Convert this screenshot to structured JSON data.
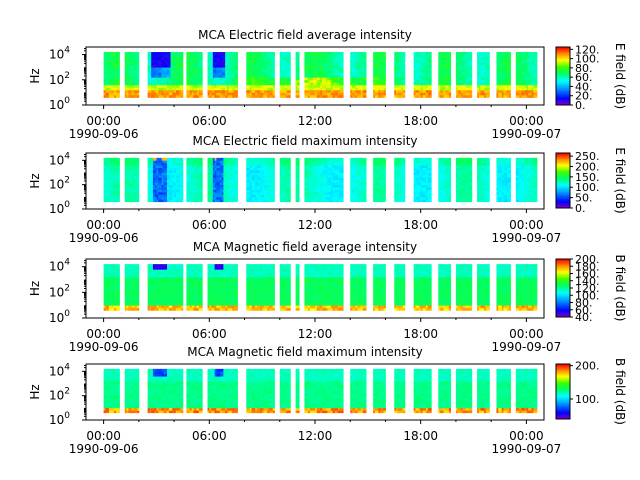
{
  "chart_data": [
    {
      "type": "heatmap",
      "title": "MCA  Electric field average intensity",
      "ylabel": "Hz",
      "colorbar_label": "E field (dB)",
      "colorbar_ticks": [
        "0.",
        "20.",
        "40.",
        "60.",
        "80.",
        "100.",
        "120."
      ],
      "colorbar_range": [
        0,
        125
      ],
      "yticks": [
        {
          "base": "10",
          "exp": "0"
        },
        {
          "base": "10",
          "exp": "2"
        },
        {
          "base": "10",
          "exp": "4"
        }
      ],
      "ylim_log10": [
        0,
        4.6
      ],
      "xticks": [
        {
          "time": "00:00",
          "date": "1990-09-06"
        },
        {
          "time": "06:00",
          "date": ""
        },
        {
          "time": "12:00",
          "date": ""
        },
        {
          "time": "18:00",
          "date": ""
        },
        {
          "time": "00:00",
          "date": "1990-09-07"
        }
      ],
      "xlim_hours": [
        -1,
        25
      ],
      "profile": "e_avg"
    },
    {
      "type": "heatmap",
      "title": "MCA  Electric field maximum intensity",
      "ylabel": "Hz",
      "colorbar_label": "E field (dB)",
      "colorbar_ticks": [
        "0.",
        "50.",
        "100.",
        "150.",
        "200.",
        "250."
      ],
      "colorbar_range": [
        0,
        265
      ],
      "yticks": [
        {
          "base": "10",
          "exp": "0"
        },
        {
          "base": "10",
          "exp": "2"
        },
        {
          "base": "10",
          "exp": "4"
        }
      ],
      "ylim_log10": [
        0,
        4.6
      ],
      "xticks": [
        {
          "time": "00:00",
          "date": "1990-09-06"
        },
        {
          "time": "06:00",
          "date": ""
        },
        {
          "time": "12:00",
          "date": ""
        },
        {
          "time": "18:00",
          "date": ""
        },
        {
          "time": "00:00",
          "date": "1990-09-07"
        }
      ],
      "xlim_hours": [
        -1,
        25
      ],
      "profile": "e_max"
    },
    {
      "type": "heatmap",
      "title": "MCA  Magnetic field average intensity",
      "ylabel": "Hz",
      "colorbar_label": "B field (dB)",
      "colorbar_ticks": [
        "40.",
        "60.",
        "80.",
        "100.",
        "120.",
        "140.",
        "160.",
        "180.",
        "200."
      ],
      "colorbar_range": [
        40,
        200
      ],
      "yticks": [
        {
          "base": "10",
          "exp": "0"
        },
        {
          "base": "10",
          "exp": "2"
        },
        {
          "base": "10",
          "exp": "4"
        }
      ],
      "ylim_log10": [
        0,
        4.6
      ],
      "xticks": [
        {
          "time": "00:00",
          "date": "1990-09-06"
        },
        {
          "time": "06:00",
          "date": ""
        },
        {
          "time": "12:00",
          "date": ""
        },
        {
          "time": "18:00",
          "date": ""
        },
        {
          "time": "00:00",
          "date": "1990-09-07"
        }
      ],
      "xlim_hours": [
        -1,
        25
      ],
      "profile": "b_avg"
    },
    {
      "type": "heatmap",
      "title": "MCA  Magnetic field maximum intensity",
      "ylabel": "Hz",
      "colorbar_label": "B field (dB)",
      "colorbar_ticks": [
        "100.",
        "200."
      ],
      "colorbar_range": [
        40,
        205
      ],
      "yticks": [
        {
          "base": "10",
          "exp": "0"
        },
        {
          "base": "10",
          "exp": "2"
        },
        {
          "base": "10",
          "exp": "4"
        }
      ],
      "ylim_log10": [
        0,
        4.6
      ],
      "xticks": [
        {
          "time": "00:00",
          "date": "1990-09-06"
        },
        {
          "time": "06:00",
          "date": ""
        },
        {
          "time": "12:00",
          "date": ""
        },
        {
          "time": "18:00",
          "date": ""
        },
        {
          "time": "00:00",
          "date": "1990-09-07"
        }
      ],
      "xlim_hours": [
        -1,
        25
      ],
      "profile": "b_max"
    }
  ],
  "data_gaps_hours": [
    [
      -1,
      0.0
    ],
    [
      0.9,
      1.2
    ],
    [
      2.0,
      2.5
    ],
    [
      4.5,
      4.7
    ],
    [
      5.6,
      5.9
    ],
    [
      7.6,
      8.1
    ],
    [
      9.7,
      10.0
    ],
    [
      10.6,
      10.9
    ],
    [
      11.1,
      11.4
    ],
    [
      13.6,
      14.0
    ],
    [
      14.9,
      15.3
    ],
    [
      16.0,
      16.5
    ],
    [
      17.1,
      17.6
    ],
    [
      18.6,
      19.0
    ],
    [
      19.7,
      20.0
    ],
    [
      20.9,
      21.2
    ],
    [
      21.9,
      22.3
    ],
    [
      23.1,
      23.4
    ],
    [
      24.6,
      25
    ]
  ],
  "data_freq_range_log10": [
    0.6,
    4.2
  ]
}
